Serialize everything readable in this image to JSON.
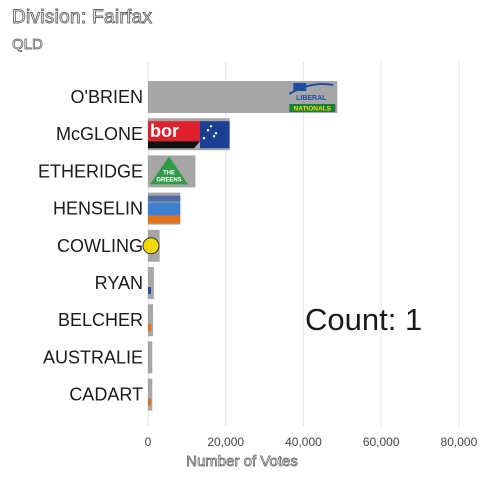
{
  "header": {
    "title": "Division: Fairfax",
    "subtitle": "QLD"
  },
  "overlay": {
    "count_label": "Count:  1"
  },
  "logos": {
    "liberal_line1": "LIBERAL",
    "liberal_line2": "NATIONALS",
    "labor_text": "bor",
    "greens_line1": "THE",
    "greens_line2": "GREENS"
  },
  "chart_data": {
    "type": "bar",
    "orientation": "horizontal",
    "title": "Division: Fairfax",
    "subtitle": "QLD",
    "xlabel": "Number of Votes",
    "ylabel": "",
    "xlim": [
      0,
      88000
    ],
    "xticks": [
      0,
      20000,
      40000,
      60000,
      80000
    ],
    "xtick_labels": [
      "0",
      "20,000",
      "40,000",
      "60,000",
      "80,000"
    ],
    "grid": true,
    "categories": [
      "O'BRIEN",
      "McGLONE",
      "ETHERIDGE",
      "HENSELIN",
      "COWLING",
      "RYAN",
      "BELCHER",
      "AUSTRALIE",
      "CADART"
    ],
    "values": [
      48700,
      21000,
      12200,
      8300,
      3000,
      1500,
      1300,
      1100,
      1100
    ],
    "colors": {
      "bar": "#a6a6a6",
      "grid": "#e6e6e6",
      "liberal_blue": "#1f4ea3",
      "nationals_green": "#1b7f3c",
      "labor_red": "#e0202b",
      "greens_green": "#2e9b46",
      "flag_blue": "#1b3f95",
      "cowling_yellow": "#f5d90a"
    }
  }
}
